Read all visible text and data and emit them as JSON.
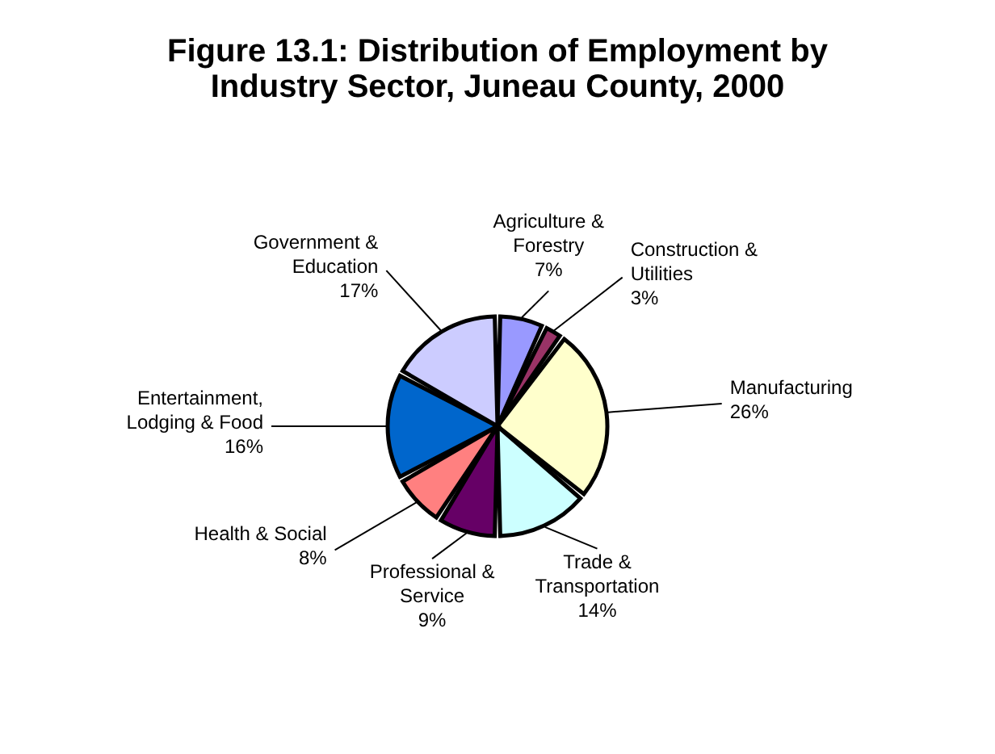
{
  "chart_data": {
    "type": "pie",
    "title": "Figure 13.1: Distribution of Employment by\nIndustry Sector, Juneau County, 2000",
    "categories": [
      "Agriculture &\nForestry",
      "Construction &\nUtilities",
      "Manufacturing",
      "Trade &\nTransportation",
      "Professional &\nService",
      "Health & Social",
      "Entertainment,\nLodging & Food",
      "Government &\nEducation"
    ],
    "values": [
      7,
      3,
      26,
      14,
      9,
      8,
      16,
      17
    ],
    "value_labels": [
      "7%",
      "3%",
      "26%",
      "14%",
      "9%",
      "8%",
      "16%",
      "17%"
    ],
    "colors": [
      "#9999ff",
      "#993366",
      "#ffffcc",
      "#ccffff",
      "#660066",
      "#ff8080",
      "#0066cc",
      "#ccccff"
    ],
    "legend": false
  }
}
